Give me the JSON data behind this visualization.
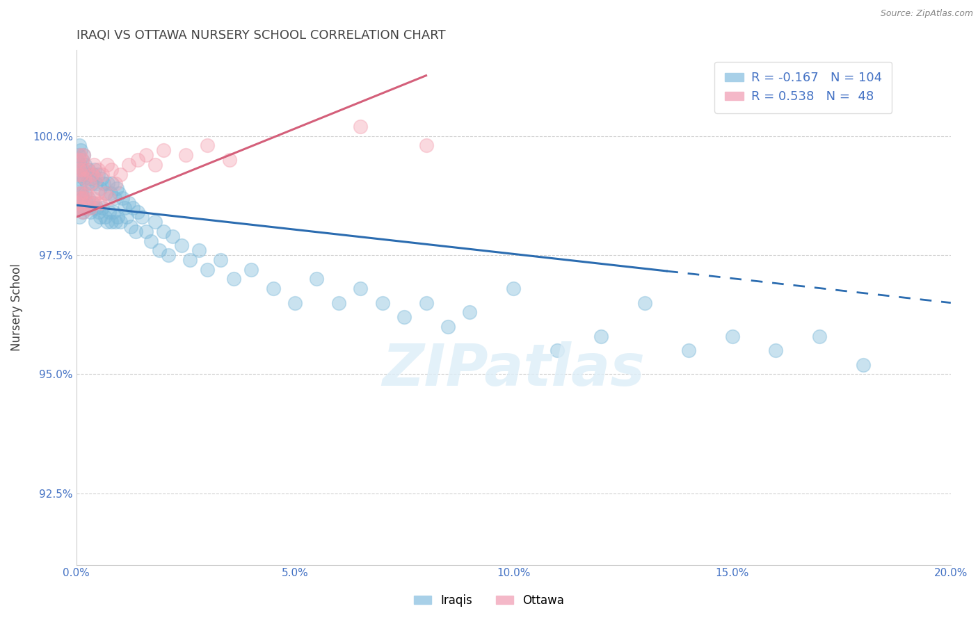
{
  "title": "IRAQI VS OTTAWA NURSERY SCHOOL CORRELATION CHART",
  "source": "Source: ZipAtlas.com",
  "ylabel": "Nursery School",
  "xlim": [
    0.0,
    20.0
  ],
  "ylim": [
    91.0,
    101.8
  ],
  "yticks": [
    92.5,
    95.0,
    97.5,
    100.0
  ],
  "ytick_labels": [
    "92.5%",
    "95.0%",
    "97.5%",
    "100.0%"
  ],
  "xticks": [
    0.0,
    5.0,
    10.0,
    15.0,
    20.0
  ],
  "xtick_labels": [
    "0.0%",
    "5.0%",
    "10.0%",
    "15.0%",
    "20.0%"
  ],
  "iraqis_R": -0.167,
  "iraqis_N": 104,
  "ottawa_R": 0.538,
  "ottawa_N": 48,
  "blue_color": "#7ab8d9",
  "pink_color": "#f4a0b0",
  "blue_line_color": "#2b6cb0",
  "pink_line_color": "#d45f7a",
  "legend_labels": [
    "Iraqis",
    "Ottawa"
  ],
  "watermark": "ZIPatlas",
  "blue_trend_x0": 0.0,
  "blue_trend_y0": 98.55,
  "blue_trend_x1": 20.0,
  "blue_trend_y1": 96.5,
  "blue_solid_end_x": 13.5,
  "pink_trend_x0": 0.0,
  "pink_trend_y0": 98.3,
  "pink_trend_x1": 3.5,
  "pink_trend_y1": 99.6,
  "iraqis_x": [
    0.02,
    0.03,
    0.04,
    0.05,
    0.05,
    0.06,
    0.07,
    0.07,
    0.08,
    0.09,
    0.1,
    0.1,
    0.11,
    0.12,
    0.13,
    0.14,
    0.15,
    0.15,
    0.16,
    0.17,
    0.18,
    0.19,
    0.2,
    0.22,
    0.23,
    0.24,
    0.25,
    0.27,
    0.28,
    0.3,
    0.32,
    0.33,
    0.35,
    0.37,
    0.38,
    0.4,
    0.42,
    0.44,
    0.45,
    0.47,
    0.5,
    0.52,
    0.54,
    0.55,
    0.57,
    0.6,
    0.62,
    0.65,
    0.67,
    0.7,
    0.72,
    0.75,
    0.78,
    0.8,
    0.82,
    0.85,
    0.88,
    0.9,
    0.92,
    0.95,
    0.98,
    1.0,
    1.05,
    1.1,
    1.15,
    1.2,
    1.25,
    1.3,
    1.35,
    1.4,
    1.5,
    1.6,
    1.7,
    1.8,
    1.9,
    2.0,
    2.1,
    2.2,
    2.4,
    2.6,
    2.8,
    3.0,
    3.3,
    3.6,
    4.0,
    4.5,
    5.0,
    5.5,
    6.0,
    6.5,
    7.0,
    7.5,
    8.0,
    8.5,
    9.0,
    10.0,
    11.0,
    12.0,
    13.0,
    14.0,
    15.0,
    16.0,
    17.0,
    18.0
  ],
  "iraqis_y": [
    99.5,
    98.8,
    99.2,
    99.6,
    98.5,
    99.1,
    99.8,
    98.3,
    99.4,
    98.9,
    99.7,
    98.6,
    99.2,
    98.8,
    99.5,
    98.4,
    99.3,
    98.7,
    99.6,
    98.5,
    99.1,
    98.8,
    99.4,
    98.6,
    99.2,
    98.5,
    99.0,
    98.7,
    99.3,
    98.5,
    99.1,
    98.4,
    99.0,
    98.6,
    99.2,
    98.5,
    99.3,
    98.2,
    99.0,
    98.5,
    99.2,
    98.4,
    98.9,
    98.3,
    99.1,
    98.5,
    99.0,
    98.3,
    98.8,
    98.2,
    99.0,
    98.4,
    98.8,
    98.2,
    99.0,
    98.4,
    98.7,
    98.2,
    98.9,
    98.3,
    98.8,
    98.2,
    98.7,
    98.5,
    98.3,
    98.6,
    98.1,
    98.5,
    98.0,
    98.4,
    98.3,
    98.0,
    97.8,
    98.2,
    97.6,
    98.0,
    97.5,
    97.9,
    97.7,
    97.4,
    97.6,
    97.2,
    97.4,
    97.0,
    97.2,
    96.8,
    96.5,
    97.0,
    96.5,
    96.8,
    96.5,
    96.2,
    96.5,
    96.0,
    96.3,
    96.8,
    95.5,
    95.8,
    96.5,
    95.5,
    95.8,
    95.5,
    95.8,
    95.2
  ],
  "ottawa_x": [
    0.02,
    0.03,
    0.04,
    0.05,
    0.06,
    0.07,
    0.08,
    0.09,
    0.1,
    0.11,
    0.12,
    0.13,
    0.14,
    0.15,
    0.16,
    0.17,
    0.18,
    0.2,
    0.22,
    0.25,
    0.27,
    0.3,
    0.33,
    0.35,
    0.38,
    0.4,
    0.42,
    0.45,
    0.48,
    0.5,
    0.55,
    0.6,
    0.65,
    0.7,
    0.75,
    0.8,
    0.9,
    1.0,
    1.2,
    1.4,
    1.6,
    1.8,
    2.0,
    2.5,
    3.0,
    3.5,
    6.5,
    8.0
  ],
  "ottawa_y": [
    98.6,
    99.2,
    98.5,
    99.5,
    98.8,
    99.3,
    98.7,
    99.6,
    98.5,
    99.2,
    98.8,
    99.5,
    98.4,
    99.3,
    98.7,
    99.6,
    98.5,
    99.1,
    98.8,
    99.3,
    98.6,
    99.0,
    98.5,
    99.2,
    98.7,
    99.4,
    98.6,
    99.1,
    98.8,
    99.3,
    98.6,
    99.2,
    98.8,
    99.4,
    98.7,
    99.3,
    99.0,
    99.2,
    99.4,
    99.5,
    99.6,
    99.4,
    99.7,
    99.6,
    99.8,
    99.5,
    100.2,
    99.8
  ]
}
